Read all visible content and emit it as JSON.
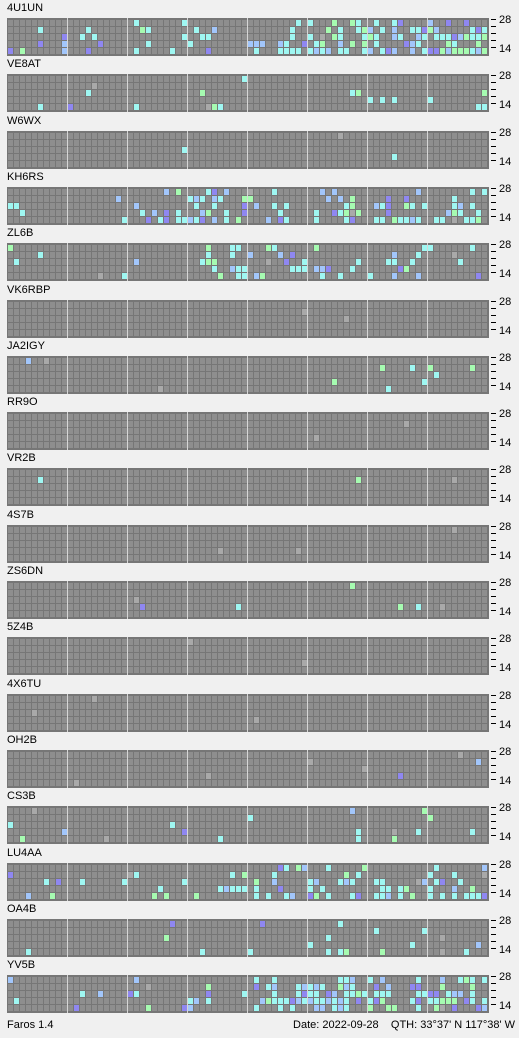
{
  "app": {
    "name": "Faros 1.4"
  },
  "status": {
    "date_label": "Date:",
    "date": "2022-09-28",
    "qth_label": "QTH:",
    "qth": "33°37' N  117°38' W"
  },
  "colors": {
    "background": "#f0f0f0",
    "grid_bg": "#767676",
    "cell_off": "#8e8e8e",
    "cell_lit": "#9ff7f2",
    "cell_blue": "#a2c6fb",
    "cell_green": "#a6fbb1",
    "cell_violet": "#8f87f1",
    "cell_gray": "#a9a9a9"
  },
  "band_labels": {
    "top": "28",
    "bottom": "14"
  },
  "stations": [
    {
      "callsign": "4U1UN",
      "seed": 11,
      "activity": 0.55,
      "reach": 0.45
    },
    {
      "callsign": "VE8AT",
      "seed": 23,
      "activity": 0.08,
      "reach": 0.3
    },
    {
      "callsign": "W6WX",
      "seed": 37,
      "activity": 0.03,
      "reach": 0.3
    },
    {
      "callsign": "KH6RS",
      "seed": 41,
      "activity": 0.35,
      "reach": 0.75
    },
    {
      "callsign": "ZL6B",
      "seed": 53,
      "activity": 0.2,
      "reach": 0.65
    },
    {
      "callsign": "VK6RBP",
      "seed": 67,
      "activity": 0.0,
      "reach": 0.0
    },
    {
      "callsign": "JA2IGY",
      "seed": 71,
      "activity": 0.03,
      "reach": 0.4
    },
    {
      "callsign": "RR9O",
      "seed": 83,
      "activity": 0.0,
      "reach": 0.0
    },
    {
      "callsign": "VR2B",
      "seed": 97,
      "activity": 0.03,
      "reach": 0.3
    },
    {
      "callsign": "4S7B",
      "seed": 101,
      "activity": 0.01,
      "reach": 0.2
    },
    {
      "callsign": "ZS6DN",
      "seed": 113,
      "activity": 0.03,
      "reach": 0.3
    },
    {
      "callsign": "5Z4B",
      "seed": 127,
      "activity": 0.0,
      "reach": 0.0
    },
    {
      "callsign": "4X6TU",
      "seed": 131,
      "activity": 0.005,
      "reach": 0.1
    },
    {
      "callsign": "OH2B",
      "seed": 149,
      "activity": 0.005,
      "reach": 0.15
    },
    {
      "callsign": "CS3B",
      "seed": 157,
      "activity": 0.06,
      "reach": 0.3
    },
    {
      "callsign": "LU4AA",
      "seed": 163,
      "activity": 0.25,
      "reach": 0.55
    },
    {
      "callsign": "OA4B",
      "seed": 179,
      "activity": 0.1,
      "reach": 0.55
    },
    {
      "callsign": "YV5B",
      "seed": 181,
      "activity": 0.5,
      "reach": 0.5
    }
  ]
}
